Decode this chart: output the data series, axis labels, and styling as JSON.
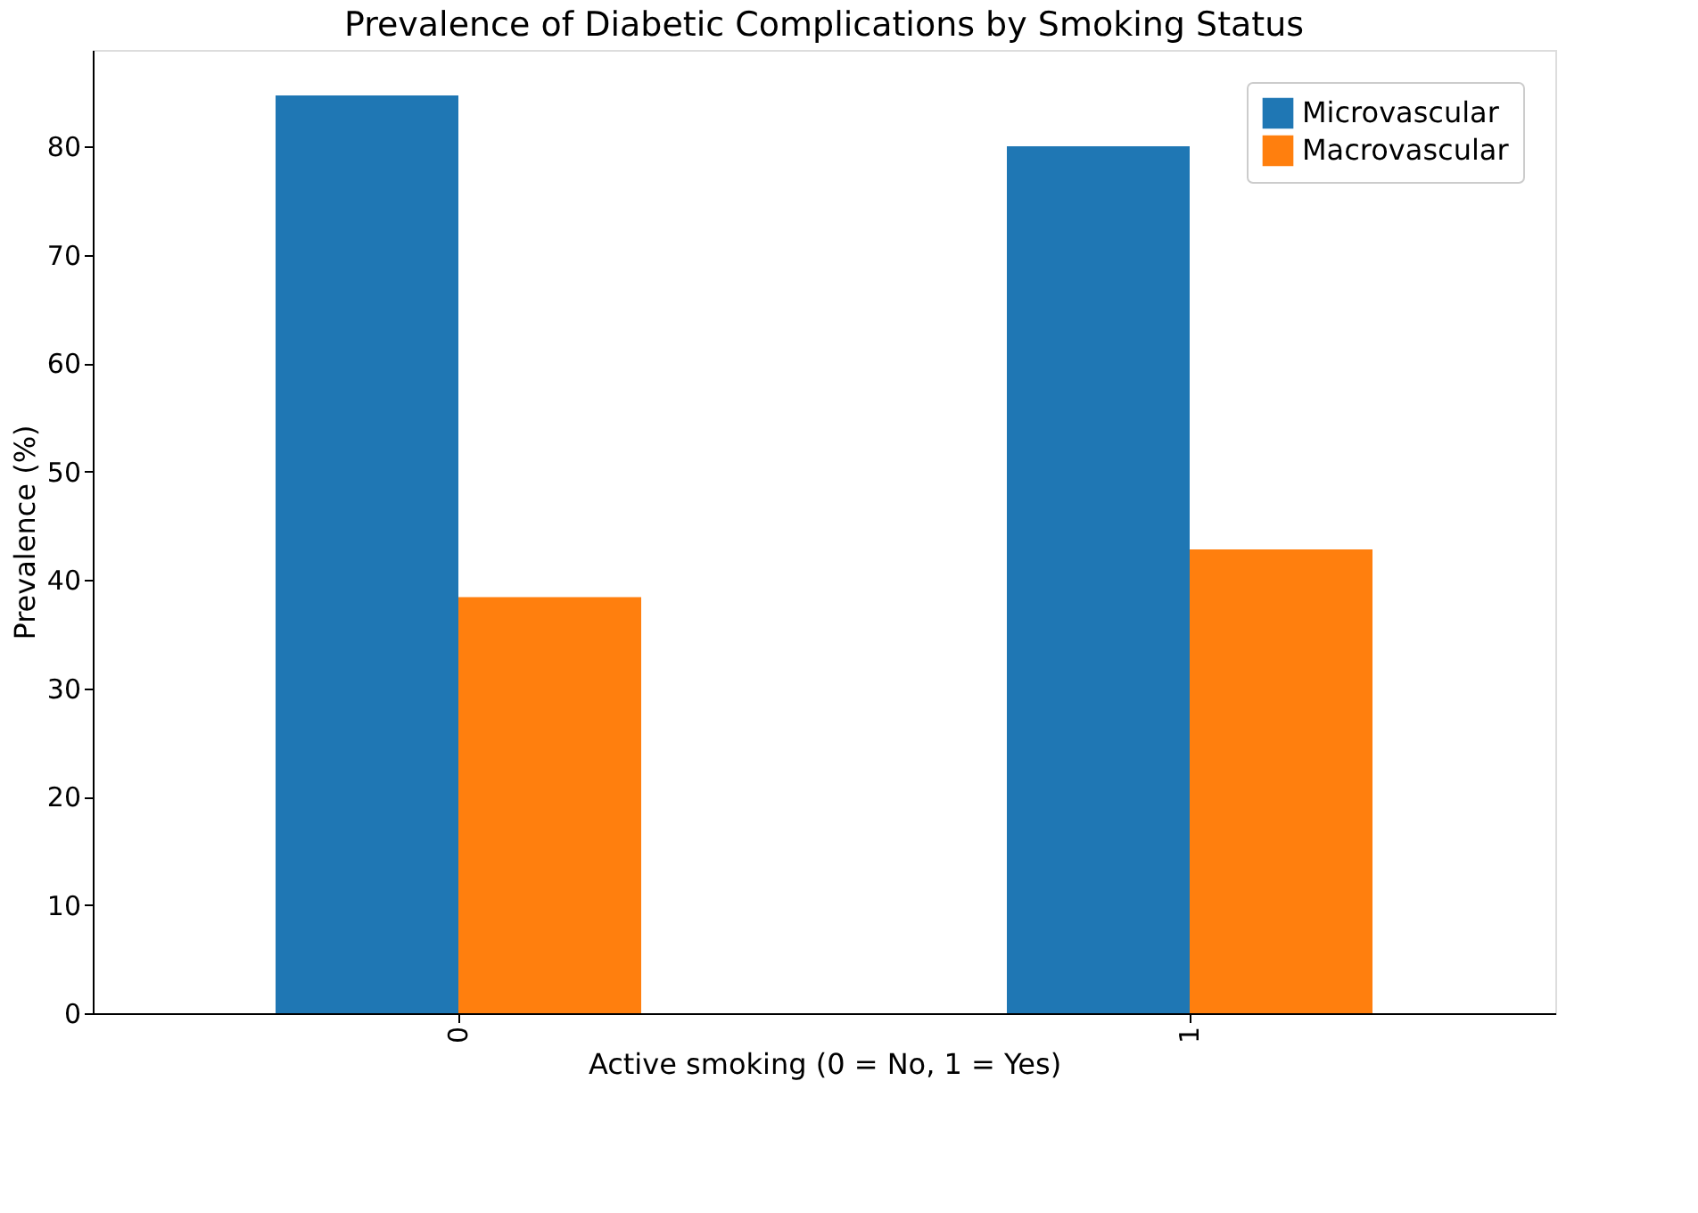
{
  "chart_data": {
    "type": "bar",
    "title": "Prevalence of Diabetic Complications by Smoking Status",
    "xlabel": "Active smoking (0 = No, 1 = Yes)",
    "ylabel": "Prevalence (%)",
    "categories": [
      "0",
      "1"
    ],
    "series": [
      {
        "name": "Microvascular",
        "color": "#1f77b4",
        "values": [
          84.7,
          80.0
        ]
      },
      {
        "name": "Macrovascular",
        "color": "#ff7f0e",
        "values": [
          38.4,
          42.8
        ]
      }
    ],
    "ylim": [
      0,
      88.9
    ],
    "yticks": [
      0,
      10,
      20,
      30,
      40,
      50,
      60,
      70,
      80
    ],
    "grid": false,
    "legend": "top right"
  }
}
